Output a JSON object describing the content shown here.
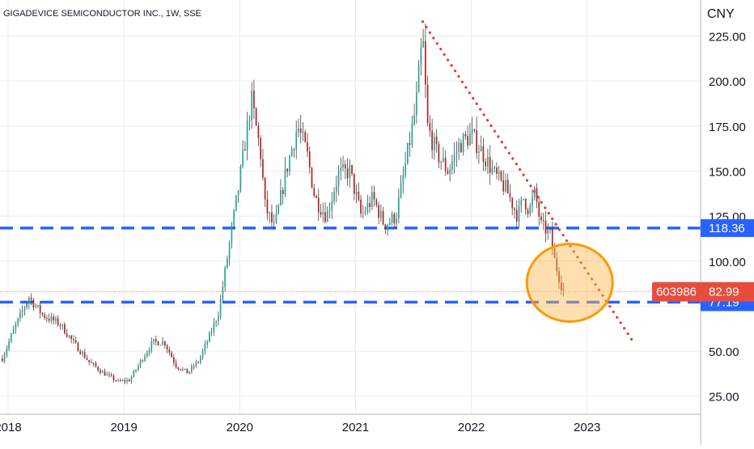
{
  "chart_data": {
    "type": "candlestick",
    "symbol_title": "GIGADEVICE SEMICONDUCTOR INC., 1W, SSE",
    "currency": "CNY",
    "x_axis": {
      "range": [
        2017.93,
        2023.98
      ],
      "ticks": [
        {
          "value": 2018,
          "label": "2018"
        },
        {
          "value": 2019,
          "label": "2019"
        },
        {
          "value": 2020,
          "label": "2020"
        },
        {
          "value": 2021,
          "label": "2021"
        },
        {
          "value": 2022,
          "label": "2022"
        },
        {
          "value": 2023,
          "label": "2023"
        }
      ]
    },
    "y_axis": {
      "range": [
        15,
        245
      ],
      "ticks": [
        {
          "value": 25,
          "label": "25.00"
        },
        {
          "value": 50,
          "label": "50.00"
        },
        {
          "value": 75,
          "label": "75.00"
        },
        {
          "value": 100,
          "label": "100.00"
        },
        {
          "value": 125,
          "label": "125.00"
        },
        {
          "value": 150,
          "label": "150.00"
        },
        {
          "value": 175,
          "label": "175.00"
        },
        {
          "value": 200,
          "label": "200.00"
        },
        {
          "value": 225,
          "label": "225.00"
        }
      ],
      "grid": true
    },
    "candle_colors": {
      "up": "#26a69a",
      "down": "#b22222",
      "wick": "#444444"
    },
    "price_anchors": [
      [
        2017.95,
        46
      ],
      [
        2018.05,
        62
      ],
      [
        2018.18,
        80
      ],
      [
        2018.3,
        70
      ],
      [
        2018.45,
        65
      ],
      [
        2018.55,
        56
      ],
      [
        2018.7,
        44
      ],
      [
        2018.82,
        38
      ],
      [
        2018.95,
        33
      ],
      [
        2019.05,
        34
      ],
      [
        2019.15,
        45
      ],
      [
        2019.25,
        55
      ],
      [
        2019.35,
        55
      ],
      [
        2019.45,
        42
      ],
      [
        2019.55,
        38
      ],
      [
        2019.65,
        45
      ],
      [
        2019.75,
        60
      ],
      [
        2019.82,
        72
      ],
      [
        2019.9,
        105
      ],
      [
        2020.0,
        145
      ],
      [
        2020.1,
        190
      ],
      [
        2020.18,
        160
      ],
      [
        2020.22,
        130
      ],
      [
        2020.3,
        118
      ],
      [
        2020.4,
        150
      ],
      [
        2020.5,
        175
      ],
      [
        2020.58,
        160
      ],
      [
        2020.65,
        135
      ],
      [
        2020.75,
        125
      ],
      [
        2020.85,
        148
      ],
      [
        2020.95,
        150
      ],
      [
        2021.05,
        125
      ],
      [
        2021.15,
        135
      ],
      [
        2021.25,
        120
      ],
      [
        2021.35,
        125
      ],
      [
        2021.45,
        160
      ],
      [
        2021.52,
        185
      ],
      [
        2021.58,
        225
      ],
      [
        2021.62,
        175
      ],
      [
        2021.7,
        160
      ],
      [
        2021.8,
        150
      ],
      [
        2021.9,
        165
      ],
      [
        2022.0,
        170
      ],
      [
        2022.1,
        160
      ],
      [
        2022.2,
        148
      ],
      [
        2022.3,
        140
      ],
      [
        2022.4,
        125
      ],
      [
        2022.45,
        135
      ],
      [
        2022.5,
        128
      ],
      [
        2022.55,
        138
      ],
      [
        2022.6,
        120
      ],
      [
        2022.68,
        115
      ],
      [
        2022.72,
        100
      ],
      [
        2022.78,
        86
      ],
      [
        2022.81,
        83
      ]
    ],
    "horizontal_lines": [
      {
        "value": 118.36,
        "label": "118.36",
        "color": "#2962ff"
      },
      {
        "value": 77.19,
        "label": "77.19",
        "color": "#2962ff"
      }
    ],
    "trendline": {
      "from": [
        2021.58,
        233
      ],
      "to": [
        2023.4,
        55
      ],
      "color": "#e53935",
      "style": "dotted"
    },
    "highlight_ellipse": {
      "center": [
        2022.85,
        88
      ],
      "color": "#ff9800",
      "fill": "rgba(255,183,77,0.45)"
    },
    "last_price": {
      "value": 82.99,
      "label": "82.99",
      "symbol": "603986",
      "color": "#e74c3c"
    },
    "legend": "none"
  }
}
